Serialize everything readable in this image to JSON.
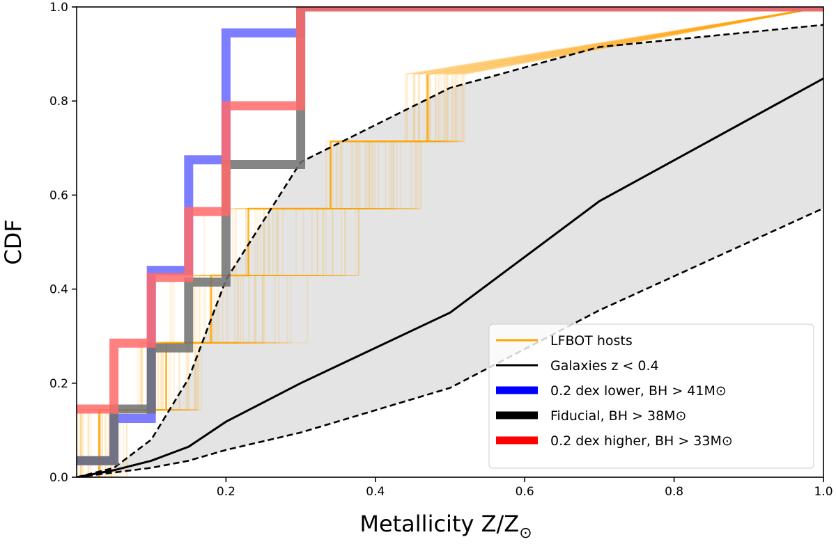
{
  "chart_data": {
    "type": "line",
    "xlabel": "Metallicity Z/Z",
    "xlabel_sub": "⊙",
    "ylabel": "CDF",
    "xlim": [
      0,
      1
    ],
    "ylim": [
      0,
      1
    ],
    "xticks": [
      0.2,
      0.4,
      0.6,
      0.8,
      1.0
    ],
    "xtick_labels": [
      "0.2",
      "0.4",
      "0.6",
      "0.8",
      "1.0"
    ],
    "yticks": [
      0.0,
      0.2,
      0.4,
      0.6,
      0.8,
      1.0
    ],
    "ytick_labels": [
      "0.0",
      "0.2",
      "0.4",
      "0.6",
      "0.8",
      "1.0"
    ],
    "grid": false,
    "legend_position": "lower-right",
    "legend": [
      {
        "label": "LFBOT hosts",
        "color": "#ffa500",
        "style": "line"
      },
      {
        "label": "Galaxies z < 0.4",
        "color": "#000000",
        "style": "line"
      },
      {
        "label": "0.2 dex lower, BH  >  41M⊙",
        "color": "#0000ff",
        "style": "thick"
      },
      {
        "label": "Fiducial, BH  >  38M⊙",
        "color": "#000000",
        "style": "thick"
      },
      {
        "label": "0.2 dex higher, BH  >  33M⊙",
        "color": "#ff0000",
        "style": "thick"
      }
    ],
    "galaxies_median": {
      "x": [
        0.0,
        0.05,
        0.1,
        0.15,
        0.2,
        0.3,
        0.5,
        0.7,
        1.0
      ],
      "y": [
        0.0,
        0.015,
        0.035,
        0.065,
        0.118,
        0.2,
        0.35,
        0.587,
        0.848
      ]
    },
    "galaxies_upper": {
      "x": [
        0.0,
        0.05,
        0.1,
        0.15,
        0.2,
        0.3,
        0.5,
        0.7,
        1.0
      ],
      "y": [
        0.0,
        0.02,
        0.08,
        0.21,
        0.42,
        0.67,
        0.828,
        0.915,
        0.962
      ]
    },
    "galaxies_lower": {
      "x": [
        0.0,
        0.05,
        0.1,
        0.15,
        0.2,
        0.3,
        0.5,
        0.7,
        1.0
      ],
      "y": [
        0.0,
        0.01,
        0.02,
        0.035,
        0.058,
        0.095,
        0.19,
        0.355,
        0.572
      ]
    },
    "lfbot_steps_y": [
      0.143,
      0.286,
      0.429,
      0.571,
      0.714,
      0.857,
      1.0
    ],
    "lfbot_representative_x": [
      0.03,
      0.12,
      0.18,
      0.23,
      0.34,
      0.47
    ],
    "lfbot_spread_x": [
      [
        0.0,
        0.07
      ],
      [
        0.08,
        0.17
      ],
      [
        0.12,
        0.34
      ],
      [
        0.16,
        0.38
      ],
      [
        0.33,
        0.47
      ],
      [
        0.44,
        0.52
      ]
    ],
    "series": [
      {
        "name": "0.2 dex lower, BH  >  41M⊙",
        "color": "#6666ff",
        "x": [
          0.0,
          0.05,
          0.1,
          0.15,
          0.2,
          0.3
        ],
        "y": [
          0.035,
          0.125,
          0.44,
          0.675,
          0.945,
          1.0
        ]
      },
      {
        "name": "Fiducial, BH  >  38M⊙",
        "color": "#707070",
        "x": [
          0.0,
          0.05,
          0.1,
          0.15,
          0.2,
          0.3
        ],
        "y": [
          0.035,
          0.145,
          0.275,
          0.415,
          0.665,
          1.0
        ]
      },
      {
        "name": "0.2 dex higher, BH  >  33M⊙",
        "color": "#ff6a6a",
        "x": [
          0.0,
          0.05,
          0.1,
          0.15,
          0.2,
          0.3
        ],
        "y": [
          0.145,
          0.285,
          0.425,
          0.565,
          0.79,
          1.0
        ]
      }
    ]
  }
}
